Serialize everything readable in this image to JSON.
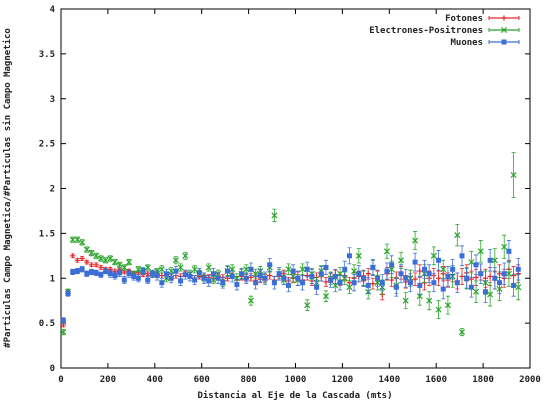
{
  "chart_data": {
    "type": "scatter",
    "title": "",
    "xlabel": "Distancia al Eje de la Cascada (mts)",
    "ylabel": "#Particulas Campo Magnetica/#Particulas sin Campo Magnetico",
    "xlim": [
      0,
      2000
    ],
    "ylim": [
      0,
      4
    ],
    "x_ticks": [
      "0",
      "200",
      "400",
      "600",
      "800",
      "1000",
      "1200",
      "1400",
      "1600",
      "1800",
      "2000"
    ],
    "y_ticks": [
      "0",
      "0.5",
      "1",
      "1.5",
      "2",
      "2.5",
      "3",
      "3.5",
      "4"
    ],
    "grid": false,
    "legend_position": "top-right",
    "series": [
      {
        "name": "Fotones",
        "color": "#e8262b",
        "marker": "plus",
        "x": [
          10,
          30,
          50,
          70,
          90,
          110,
          130,
          150,
          170,
          190,
          210,
          230,
          250,
          270,
          290,
          310,
          330,
          350,
          370,
          390,
          410,
          430,
          450,
          470,
          490,
          510,
          530,
          550,
          570,
          590,
          610,
          630,
          650,
          670,
          690,
          710,
          730,
          750,
          770,
          790,
          810,
          830,
          850,
          870,
          890,
          910,
          930,
          950,
          970,
          990,
          1010,
          1030,
          1050,
          1070,
          1090,
          1110,
          1130,
          1150,
          1170,
          1190,
          1210,
          1230,
          1250,
          1270,
          1290,
          1310,
          1330,
          1350,
          1370,
          1390,
          1410,
          1430,
          1450,
          1470,
          1490,
          1510,
          1530,
          1550,
          1570,
          1590,
          1610,
          1630,
          1650,
          1670,
          1690,
          1710,
          1730,
          1750,
          1770,
          1790,
          1810,
          1830,
          1850,
          1870,
          1890,
          1910,
          1930,
          1950
        ],
        "y": [
          0.48,
          0.85,
          1.25,
          1.2,
          1.22,
          1.18,
          1.15,
          1.15,
          1.12,
          1.1,
          1.1,
          1.08,
          1.09,
          1.07,
          1.08,
          1.05,
          1.06,
          1.04,
          1.05,
          1.03,
          1.04,
          1.03,
          1.04,
          1.02,
          1.03,
          1.02,
          1.05,
          1.03,
          1.0,
          1.02,
          1.03,
          1.01,
          1.0,
          1.02,
          1.01,
          1.0,
          1.03,
          0.98,
          1.02,
          1.0,
          1.01,
          1.02,
          0.99,
          1.0,
          1.03,
          0.98,
          1.02,
          1.05,
          0.97,
          1.0,
          1.02,
          0.98,
          1.03,
          0.97,
          1.01,
          1.02,
          0.96,
          1.0,
          1.04,
          0.98,
          1.03,
          0.95,
          1.0,
          1.02,
          0.97,
          1.05,
          0.94,
          1.02,
          0.82,
          1.05,
          0.98,
          1.0,
          1.06,
          0.96,
          1.02,
          0.99,
          1.08,
          0.95,
          1.0,
          1.03,
          1.0,
          1.05,
          0.98,
          1.04,
          0.97,
          1.02,
          1.06,
          0.99,
          1.01,
          1.07,
          1.0,
          1.02,
          0.98,
          1.05,
          1.0,
          1.1,
          1.03,
          1.05
        ],
        "err": [
          0.02,
          0.02,
          0.02,
          0.02,
          0.02,
          0.02,
          0.02,
          0.02,
          0.02,
          0.02,
          0.02,
          0.02,
          0.02,
          0.02,
          0.02,
          0.02,
          0.02,
          0.02,
          0.02,
          0.02,
          0.02,
          0.03,
          0.03,
          0.03,
          0.03,
          0.03,
          0.03,
          0.03,
          0.03,
          0.03,
          0.03,
          0.03,
          0.03,
          0.03,
          0.03,
          0.03,
          0.03,
          0.04,
          0.04,
          0.04,
          0.04,
          0.04,
          0.04,
          0.04,
          0.04,
          0.04,
          0.04,
          0.04,
          0.04,
          0.05,
          0.05,
          0.05,
          0.05,
          0.05,
          0.05,
          0.05,
          0.05,
          0.05,
          0.05,
          0.06,
          0.06,
          0.06,
          0.06,
          0.06,
          0.06,
          0.06,
          0.06,
          0.06,
          0.06,
          0.07,
          0.07,
          0.07,
          0.07,
          0.07,
          0.07,
          0.07,
          0.07,
          0.08,
          0.08,
          0.08,
          0.08,
          0.08,
          0.08,
          0.08,
          0.09,
          0.09,
          0.09,
          0.09,
          0.09,
          0.09,
          0.1,
          0.1,
          0.1,
          0.1,
          0.1,
          0.1,
          0.1,
          0.1
        ]
      },
      {
        "name": "Electrones-Positrones",
        "color": "#2aa52a",
        "marker": "cross",
        "x": [
          10,
          30,
          50,
          70,
          90,
          110,
          130,
          150,
          170,
          190,
          210,
          230,
          250,
          270,
          290,
          310,
          330,
          350,
          370,
          390,
          410,
          430,
          450,
          470,
          490,
          510,
          530,
          550,
          570,
          590,
          610,
          630,
          650,
          670,
          690,
          710,
          730,
          750,
          770,
          790,
          810,
          830,
          850,
          870,
          890,
          910,
          930,
          950,
          970,
          990,
          1010,
          1030,
          1050,
          1070,
          1090,
          1110,
          1130,
          1150,
          1170,
          1190,
          1210,
          1230,
          1250,
          1270,
          1290,
          1310,
          1330,
          1350,
          1370,
          1390,
          1410,
          1430,
          1450,
          1470,
          1490,
          1510,
          1530,
          1550,
          1570,
          1590,
          1610,
          1630,
          1650,
          1670,
          1690,
          1710,
          1730,
          1750,
          1770,
          1790,
          1810,
          1830,
          1850,
          1870,
          1890,
          1910,
          1930,
          1950
        ],
        "y": [
          0.4,
          0.85,
          1.43,
          1.43,
          1.4,
          1.32,
          1.28,
          1.25,
          1.22,
          1.2,
          1.22,
          1.18,
          1.15,
          1.12,
          1.18,
          1.05,
          1.1,
          1.08,
          1.12,
          1.05,
          1.08,
          1.1,
          1.0,
          1.08,
          1.2,
          1.12,
          1.25,
          1.05,
          1.1,
          1.05,
          1.0,
          1.12,
          0.98,
          1.05,
          0.95,
          1.08,
          1.1,
          1.0,
          1.05,
          1.1,
          0.75,
          1.05,
          1.08,
          1.0,
          1.12,
          1.7,
          1.05,
          0.98,
          1.1,
          1.02,
          0.98,
          1.1,
          0.7,
          1.05,
          0.95,
          1.08,
          0.8,
          1.0,
          0.92,
          1.05,
          1.0,
          0.9,
          1.08,
          1.25,
          1.0,
          0.85,
          1.12,
          0.95,
          0.9,
          1.3,
          1.1,
          0.92,
          1.2,
          0.75,
          1.0,
          1.42,
          0.8,
          1.05,
          0.75,
          1.25,
          0.65,
          1.1,
          0.7,
          1.02,
          1.48,
          0.4,
          1.0,
          1.18,
          0.85,
          1.3,
          0.95,
          0.82,
          1.2,
          0.88,
          1.35,
          1.05,
          2.15,
          0.9
        ],
        "err": [
          0.03,
          0.03,
          0.03,
          0.03,
          0.03,
          0.03,
          0.03,
          0.03,
          0.03,
          0.03,
          0.03,
          0.03,
          0.03,
          0.03,
          0.03,
          0.03,
          0.03,
          0.03,
          0.03,
          0.03,
          0.03,
          0.04,
          0.04,
          0.04,
          0.04,
          0.04,
          0.04,
          0.04,
          0.04,
          0.04,
          0.04,
          0.04,
          0.04,
          0.04,
          0.04,
          0.05,
          0.05,
          0.05,
          0.05,
          0.05,
          0.05,
          0.05,
          0.05,
          0.05,
          0.05,
          0.07,
          0.05,
          0.05,
          0.06,
          0.06,
          0.06,
          0.06,
          0.06,
          0.06,
          0.06,
          0.06,
          0.06,
          0.07,
          0.07,
          0.07,
          0.07,
          0.07,
          0.07,
          0.08,
          0.08,
          0.08,
          0.08,
          0.08,
          0.08,
          0.08,
          0.09,
          0.09,
          0.09,
          0.09,
          0.09,
          0.1,
          0.1,
          0.1,
          0.1,
          0.1,
          0.1,
          0.1,
          0.1,
          0.12,
          0.12,
          0.04,
          0.12,
          0.12,
          0.12,
          0.12,
          0.13,
          0.13,
          0.13,
          0.13,
          0.13,
          0.14,
          0.25,
          0.14
        ]
      },
      {
        "name": "Muones",
        "color": "#3b6fd6",
        "marker": "box",
        "x": [
          10,
          30,
          50,
          70,
          90,
          110,
          130,
          150,
          170,
          190,
          210,
          230,
          250,
          270,
          290,
          310,
          330,
          350,
          370,
          390,
          410,
          430,
          450,
          470,
          490,
          510,
          530,
          550,
          570,
          590,
          610,
          630,
          650,
          670,
          690,
          710,
          730,
          750,
          770,
          790,
          810,
          830,
          850,
          870,
          890,
          910,
          930,
          950,
          970,
          990,
          1010,
          1030,
          1050,
          1070,
          1090,
          1110,
          1130,
          1150,
          1170,
          1190,
          1210,
          1230,
          1250,
          1270,
          1290,
          1310,
          1330,
          1350,
          1370,
          1390,
          1410,
          1430,
          1450,
          1470,
          1490,
          1510,
          1530,
          1550,
          1570,
          1590,
          1610,
          1630,
          1650,
          1670,
          1690,
          1710,
          1730,
          1750,
          1770,
          1790,
          1810,
          1830,
          1850,
          1870,
          1890,
          1910,
          1930,
          1950
        ],
        "y": [
          0.53,
          0.83,
          1.07,
          1.08,
          1.1,
          1.05,
          1.07,
          1.06,
          1.04,
          1.08,
          1.05,
          1.03,
          1.06,
          0.98,
          1.05,
          1.02,
          1.0,
          1.08,
          0.98,
          1.05,
          1.03,
          0.95,
          1.05,
          1.0,
          1.08,
          0.97,
          1.04,
          1.02,
          0.98,
          1.06,
          1.0,
          0.97,
          1.05,
          1.0,
          0.95,
          1.08,
          1.02,
          0.93,
          1.05,
          1.0,
          1.1,
          0.95,
          1.03,
          1.0,
          1.15,
          0.95,
          1.05,
          1.0,
          0.92,
          1.08,
          1.0,
          0.95,
          1.1,
          1.02,
          0.9,
          1.05,
          1.12,
          0.98,
          1.02,
          0.95,
          1.1,
          1.25,
          0.95,
          1.05,
          1.0,
          0.92,
          1.12,
          1.0,
          0.95,
          1.08,
          1.15,
          0.9,
          1.05,
          1.0,
          0.95,
          1.18,
          0.92,
          1.1,
          1.05,
          0.95,
          1.2,
          0.88,
          1.02,
          1.1,
          0.95,
          1.25,
          1.0,
          0.9,
          1.15,
          1.05,
          0.85,
          1.2,
          1.0,
          0.95,
          1.05,
          1.3,
          0.92,
          1.1
        ],
        "err": [
          0.03,
          0.03,
          0.03,
          0.03,
          0.03,
          0.03,
          0.03,
          0.03,
          0.03,
          0.03,
          0.04,
          0.04,
          0.04,
          0.04,
          0.04,
          0.04,
          0.04,
          0.04,
          0.04,
          0.04,
          0.05,
          0.05,
          0.05,
          0.05,
          0.05,
          0.05,
          0.05,
          0.05,
          0.05,
          0.05,
          0.06,
          0.06,
          0.06,
          0.06,
          0.06,
          0.06,
          0.06,
          0.06,
          0.06,
          0.06,
          0.07,
          0.07,
          0.07,
          0.07,
          0.07,
          0.07,
          0.07,
          0.07,
          0.07,
          0.07,
          0.08,
          0.08,
          0.08,
          0.08,
          0.08,
          0.08,
          0.08,
          0.08,
          0.08,
          0.08,
          0.09,
          0.09,
          0.09,
          0.09,
          0.09,
          0.09,
          0.09,
          0.09,
          0.09,
          0.09,
          0.1,
          0.1,
          0.1,
          0.1,
          0.1,
          0.1,
          0.1,
          0.1,
          0.1,
          0.1,
          0.11,
          0.11,
          0.11,
          0.11,
          0.11,
          0.11,
          0.11,
          0.11,
          0.11,
          0.11,
          0.12,
          0.12,
          0.12,
          0.12,
          0.12,
          0.12,
          0.12,
          0.12
        ]
      }
    ]
  }
}
